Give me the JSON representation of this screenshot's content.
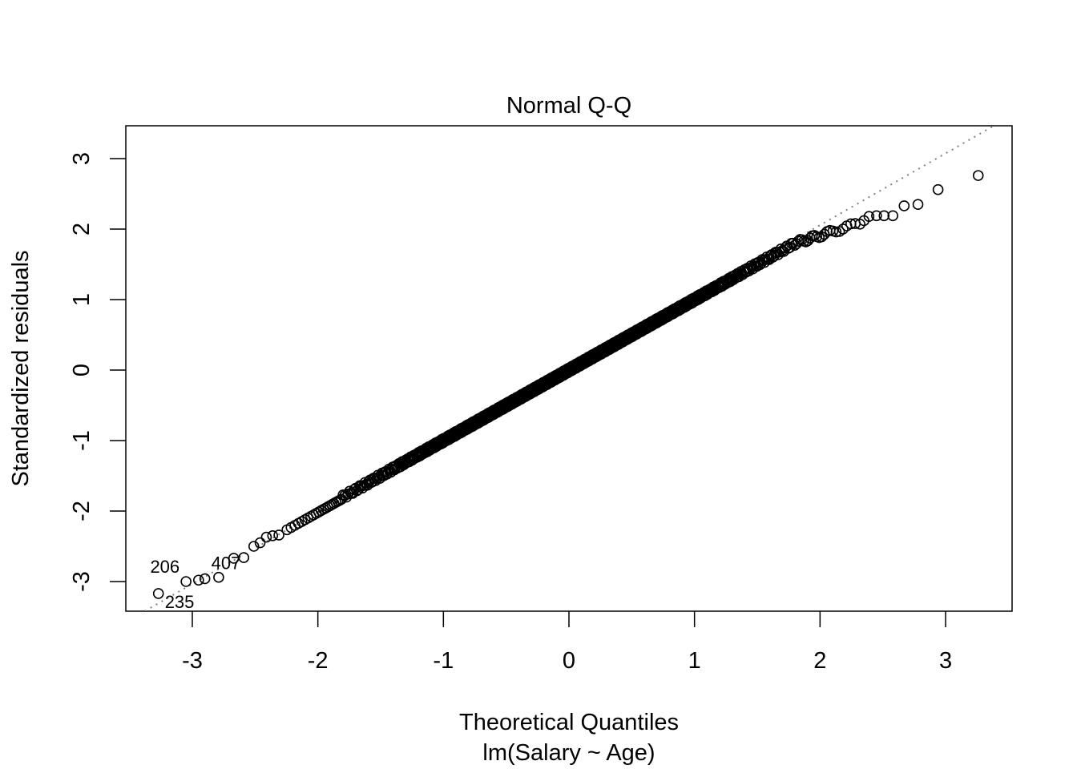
{
  "chart_data": {
    "type": "scatter",
    "title": "Normal Q-Q",
    "xlabel": "Theoretical Quantiles",
    "subtitle": "lm(Salary ~ Age)",
    "ylabel": "Standardized residuals",
    "xlim": [
      -3.4,
      3.5
    ],
    "ylim": [
      -3.4,
      3.5
    ],
    "xticks": [
      -3,
      -2,
      -1,
      0,
      1,
      2,
      3
    ],
    "yticks": [
      -3,
      -2,
      -1,
      0,
      1,
      2,
      3
    ],
    "grid": false,
    "reference_line": {
      "intercept": 0.02,
      "slope": 1.018,
      "style": "dotted",
      "color": "#808080"
    },
    "n_points": 930,
    "body_rule": "points at normal quantiles (i-0.5)/n for |q|<=2.3; residual approximately equal to q, flattening above q=1.8",
    "tail_points": [
      {
        "x": -3.27,
        "y": -3.17,
        "label": "235"
      },
      {
        "x": -3.05,
        "y": -3.0,
        "label": "206"
      },
      {
        "x": -2.95,
        "y": -2.98
      },
      {
        "x": -2.9,
        "y": -2.96,
        "label": "407"
      },
      {
        "x": -2.79,
        "y": -2.94
      },
      {
        "x": -2.67,
        "y": -2.67
      },
      {
        "x": -2.59,
        "y": -2.66
      },
      {
        "x": -2.51,
        "y": -2.5
      },
      {
        "x": -2.46,
        "y": -2.45
      },
      {
        "x": -2.41,
        "y": -2.37
      },
      {
        "x": -2.36,
        "y": -2.35
      },
      {
        "x": -2.31,
        "y": -2.34
      },
      {
        "x": 2.35,
        "y": 2.12
      },
      {
        "x": 2.39,
        "y": 2.18
      },
      {
        "x": 2.45,
        "y": 2.19
      },
      {
        "x": 2.51,
        "y": 2.19
      },
      {
        "x": 2.58,
        "y": 2.19
      },
      {
        "x": 2.67,
        "y": 2.33
      },
      {
        "x": 2.78,
        "y": 2.35
      },
      {
        "x": 2.94,
        "y": 2.56
      },
      {
        "x": 3.26,
        "y": 2.76
      }
    ]
  }
}
